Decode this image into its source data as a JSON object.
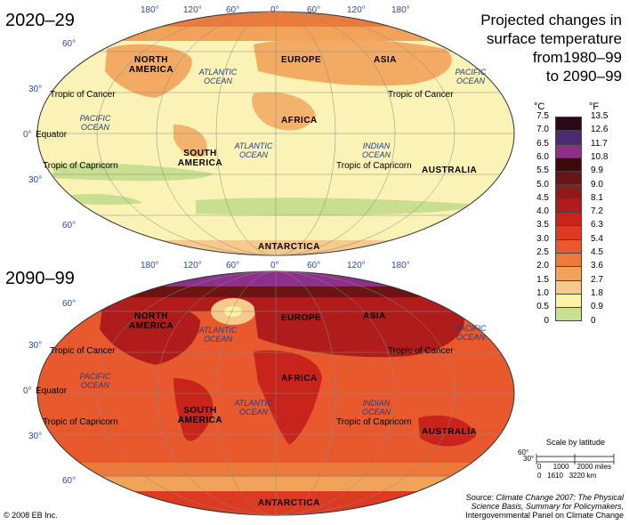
{
  "title": "Projected changes in\nsurface temperature\nfrom1980–99\nto 2090–99",
  "periods": [
    "2020–29",
    "2090–99"
  ],
  "longitudes": [
    "180°",
    "120°",
    "60°",
    "0°",
    "60°",
    "120°",
    "180°"
  ],
  "latitudes": [
    "60°",
    "30°",
    "0°",
    "30°",
    "60°"
  ],
  "reference_lines": {
    "cancer": "Tropic of Cancer",
    "equator": "Equator",
    "capricorn": "Tropic of Capricorn"
  },
  "continents": {
    "north_america": "NORTH AMERICA",
    "europe": "EUROPE",
    "asia": "ASIA",
    "africa": "AFRICA",
    "south_america": "SOUTH AMERICA",
    "australia": "AUSTRALIA",
    "antarctica": "ANTARCTICA"
  },
  "oceans": {
    "atlantic": "ATLANTIC OCEAN",
    "pacific": "PACIFIC OCEAN",
    "indian": "INDIAN OCEAN"
  },
  "legend": {
    "unit_c": "°C",
    "unit_f": "°F",
    "celsius": [
      "7.5",
      "7.0",
      "6.5",
      "6.0",
      "5.5",
      "5.0",
      "4.5",
      "4.0",
      "3.5",
      "3.0",
      "2.5",
      "2.0",
      "1.5",
      "1.0",
      "0.5",
      "0"
    ],
    "fahrenheit": [
      "13.5",
      "12.6",
      "11.7",
      "10.8",
      "9.9",
      "9.0",
      "8.1",
      "7.2",
      "6.3",
      "5.4",
      "4.5",
      "3.6",
      "2.7",
      "1.8",
      "0.9",
      "0"
    ],
    "colors": [
      "#2a0a18",
      "#4b2a72",
      "#8e2f8c",
      "#3d0a0a",
      "#6a1414",
      "#8e1a1a",
      "#b01c1c",
      "#c8241c",
      "#dd3a22",
      "#e85a2e",
      "#ec7a3a",
      "#f2a35a",
      "#f7c98a",
      "#fbf2a4",
      "#c7df8e"
    ]
  },
  "scale": {
    "title": "Scale by latitude",
    "lat1": "60°",
    "lat2": "30°",
    "miles": "0      1000    2000 miles",
    "km": "0   1610   3220 km"
  },
  "copyright": "© 2008 EB Inc.",
  "source": {
    "prefix": "Source: ",
    "line1": "Climate Change 2007: The Physical",
    "line2": "Science Basis, Summary for Policymakers,",
    "line3": "Intergovernmental Panel on Climate Change"
  }
}
